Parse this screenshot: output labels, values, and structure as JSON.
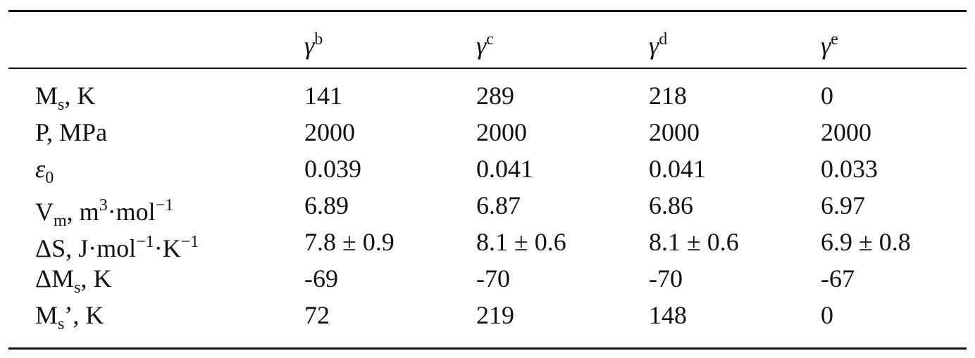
{
  "table": {
    "header": [
      [
        {
          "text": "γ",
          "style": "italic"
        },
        {
          "text": "b",
          "style": "sup"
        }
      ],
      [
        {
          "text": "γ",
          "style": "italic"
        },
        {
          "text": "c",
          "style": "sup"
        }
      ],
      [
        {
          "text": "γ",
          "style": "italic"
        },
        {
          "text": "d",
          "style": "sup"
        }
      ],
      [
        {
          "text": "γ",
          "style": "italic"
        },
        {
          "text": "e",
          "style": "sup"
        }
      ]
    ],
    "rows": [
      {
        "label": [
          {
            "text": "M"
          },
          {
            "text": "s",
            "style": "sub"
          },
          {
            "text": ", K"
          }
        ],
        "cells": [
          "141",
          "289",
          "218",
          "0"
        ]
      },
      {
        "label": [
          {
            "text": "P, MPa"
          }
        ],
        "cells": [
          "2000",
          "2000",
          "2000",
          "2000"
        ]
      },
      {
        "label": [
          {
            "text": "ε",
            "style": "italic"
          },
          {
            "text": "0",
            "style": "sub"
          }
        ],
        "cells": [
          "0.039",
          "0.041",
          "0.041",
          "0.033"
        ]
      },
      {
        "label": [
          {
            "text": "V"
          },
          {
            "text": "m",
            "style": "sub"
          },
          {
            "text": ", m"
          },
          {
            "text": "3",
            "style": "sup"
          },
          {
            "text": "·mol"
          },
          {
            "text": "−1",
            "style": "sup"
          }
        ],
        "cells": [
          "6.89",
          "6.87",
          "6.86",
          "6.97"
        ]
      },
      {
        "label": [
          {
            "text": "ΔS, J·mol"
          },
          {
            "text": "−1",
            "style": "sup"
          },
          {
            "text": "·K"
          },
          {
            "text": "−1",
            "style": "sup"
          }
        ],
        "cells": [
          "7.8 ± 0.9",
          "8.1 ± 0.6",
          "8.1 ± 0.6",
          "6.9 ± 0.8"
        ]
      },
      {
        "label": [
          {
            "text": "ΔM"
          },
          {
            "text": "s",
            "style": "sub"
          },
          {
            "text": ", K"
          }
        ],
        "cells": [
          "-69",
          "-70",
          "-70",
          "-67"
        ]
      },
      {
        "label": [
          {
            "text": "M"
          },
          {
            "text": "s",
            "style": "sub"
          },
          {
            "text": "’, K"
          }
        ],
        "cells": [
          "72",
          "219",
          "148",
          "0"
        ]
      }
    ]
  }
}
